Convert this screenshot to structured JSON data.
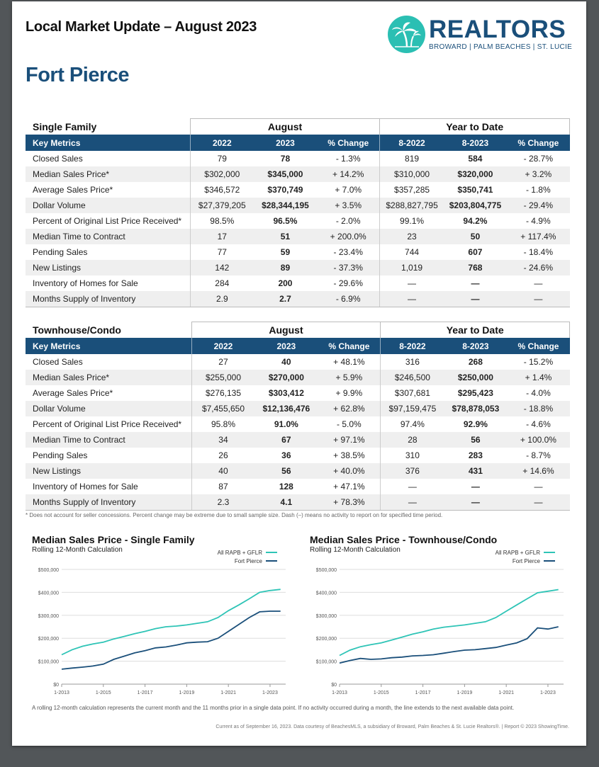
{
  "header": {
    "title": "Local Market Update – August 2023",
    "city": "Fort Pierce",
    "logo": {
      "name": "REALTORS",
      "sub": "BROWARD | PALM BEACHES | ST. LUCIE",
      "icon": "palm-tree-logo",
      "color": "#2bbfb3"
    }
  },
  "tables": [
    {
      "section": "Single Family",
      "group_august": "August",
      "group_ytd": "Year to Date",
      "columns": [
        "Key Metrics",
        "2022",
        "2023",
        "% Change",
        "8-2022",
        "8-2023",
        "% Change"
      ],
      "rows": [
        [
          "Closed Sales",
          "79",
          "78",
          "- 1.3%",
          "819",
          "584",
          "- 28.7%"
        ],
        [
          "Median Sales Price*",
          "$302,000",
          "$345,000",
          "+ 14.2%",
          "$310,000",
          "$320,000",
          "+ 3.2%"
        ],
        [
          "Average Sales Price*",
          "$346,572",
          "$370,749",
          "+ 7.0%",
          "$357,285",
          "$350,741",
          "- 1.8%"
        ],
        [
          "Dollar Volume",
          "$27,379,205",
          "$28,344,195",
          "+ 3.5%",
          "$288,827,795",
          "$203,804,775",
          "- 29.4%"
        ],
        [
          "Percent of Original List Price Received*",
          "98.5%",
          "96.5%",
          "- 2.0%",
          "99.1%",
          "94.2%",
          "- 4.9%"
        ],
        [
          "Median Time to Contract",
          "17",
          "51",
          "+ 200.0%",
          "23",
          "50",
          "+ 117.4%"
        ],
        [
          "Pending Sales",
          "77",
          "59",
          "- 23.4%",
          "744",
          "607",
          "- 18.4%"
        ],
        [
          "New Listings",
          "142",
          "89",
          "- 37.3%",
          "1,019",
          "768",
          "- 24.6%"
        ],
        [
          "Inventory of Homes for Sale",
          "284",
          "200",
          "- 29.6%",
          "—",
          "—",
          "—"
        ],
        [
          "Months Supply of Inventory",
          "2.9",
          "2.7",
          "- 6.9%",
          "—",
          "—",
          "—"
        ]
      ]
    },
    {
      "section": "Townhouse/Condo",
      "group_august": "August",
      "group_ytd": "Year to Date",
      "columns": [
        "Key Metrics",
        "2022",
        "2023",
        "% Change",
        "8-2022",
        "8-2023",
        "% Change"
      ],
      "rows": [
        [
          "Closed Sales",
          "27",
          "40",
          "+ 48.1%",
          "316",
          "268",
          "- 15.2%"
        ],
        [
          "Median Sales Price*",
          "$255,000",
          "$270,000",
          "+ 5.9%",
          "$246,500",
          "$250,000",
          "+ 1.4%"
        ],
        [
          "Average Sales Price*",
          "$276,135",
          "$303,412",
          "+ 9.9%",
          "$307,681",
          "$295,423",
          "- 4.0%"
        ],
        [
          "Dollar Volume",
          "$7,455,650",
          "$12,136,476",
          "+ 62.8%",
          "$97,159,475",
          "$78,878,053",
          "- 18.8%"
        ],
        [
          "Percent of Original List Price Received*",
          "95.8%",
          "91.0%",
          "- 5.0%",
          "97.4%",
          "92.9%",
          "- 4.6%"
        ],
        [
          "Median Time to Contract",
          "34",
          "67",
          "+ 97.1%",
          "28",
          "56",
          "+ 100.0%"
        ],
        [
          "Pending Sales",
          "26",
          "36",
          "+ 38.5%",
          "310",
          "283",
          "- 8.7%"
        ],
        [
          "New Listings",
          "40",
          "56",
          "+ 40.0%",
          "376",
          "431",
          "+ 14.6%"
        ],
        [
          "Inventory of Homes for Sale",
          "87",
          "128",
          "+ 47.1%",
          "—",
          "—",
          "—"
        ],
        [
          "Months Supply of Inventory",
          "2.3",
          "4.1",
          "+ 78.3%",
          "—",
          "—",
          "—"
        ]
      ]
    }
  ],
  "footnote": "* Does not account for seller concessions. Percent change may be extreme due to small sample size. Dash (–) means no activity to report on for specified time period.",
  "chart_data": [
    {
      "type": "line",
      "title": "Median Sales Price - Single Family",
      "subtitle": "Rolling 12-Month Calculation",
      "x": [
        2013.0,
        2013.5,
        2014.0,
        2014.5,
        2015.0,
        2015.5,
        2016.0,
        2016.5,
        2017.0,
        2017.5,
        2018.0,
        2018.5,
        2019.0,
        2019.5,
        2020.0,
        2020.5,
        2021.0,
        2021.5,
        2022.0,
        2022.5,
        2023.0,
        2023.5
      ],
      "x_ticks": [
        "1-2013",
        "1-2015",
        "1-2017",
        "1-2019",
        "1-2021",
        "1-2023"
      ],
      "y_ticks": [
        "$0",
        "$100,000",
        "$200,000",
        "$300,000",
        "$400,000",
        "$500,000"
      ],
      "ylim": [
        0,
        500000
      ],
      "legend": "top-right",
      "series": [
        {
          "name": "All RAPB + GFLR",
          "color": "#2ec4b6",
          "values": [
            128000,
            150000,
            165000,
            175000,
            183000,
            197000,
            208000,
            220000,
            230000,
            242000,
            250000,
            253000,
            258000,
            265000,
            272000,
            290000,
            320000,
            345000,
            372000,
            400000,
            408000,
            413000
          ]
        },
        {
          "name": "Fort Pierce",
          "color": "#1a4f7a",
          "values": [
            65000,
            70000,
            74000,
            79000,
            87000,
            108000,
            122000,
            136000,
            146000,
            158000,
            162000,
            170000,
            180000,
            183000,
            185000,
            200000,
            230000,
            260000,
            290000,
            315000,
            318000,
            318000
          ]
        }
      ]
    },
    {
      "type": "line",
      "title": "Median Sales Price - Townhouse/Condo",
      "subtitle": "Rolling 12-Month Calculation",
      "x": [
        2013.0,
        2013.5,
        2014.0,
        2014.5,
        2015.0,
        2015.5,
        2016.0,
        2016.5,
        2017.0,
        2017.5,
        2018.0,
        2018.5,
        2019.0,
        2019.5,
        2020.0,
        2020.5,
        2021.0,
        2021.5,
        2022.0,
        2022.5,
        2023.0,
        2023.5
      ],
      "x_ticks": [
        "1-2013",
        "1-2015",
        "1-2017",
        "1-2019",
        "1-2021",
        "1-2023"
      ],
      "y_ticks": [
        "$0",
        "$100,000",
        "$200,000",
        "$300,000",
        "$400,000",
        "$500,000"
      ],
      "ylim": [
        0,
        500000
      ],
      "legend": "top-right",
      "series": [
        {
          "name": "All RAPB + GFLR",
          "color": "#2ec4b6",
          "values": [
            125000,
            148000,
            163000,
            172000,
            180000,
            192000,
            205000,
            218000,
            228000,
            240000,
            248000,
            253000,
            258000,
            265000,
            272000,
            290000,
            318000,
            345000,
            372000,
            398000,
            405000,
            412000
          ]
        },
        {
          "name": "Fort Pierce",
          "color": "#1a4f7a",
          "values": [
            92000,
            103000,
            112000,
            108000,
            110000,
            115000,
            118000,
            123000,
            125000,
            128000,
            135000,
            142000,
            148000,
            150000,
            155000,
            160000,
            170000,
            180000,
            198000,
            245000,
            240000,
            250000
          ]
        }
      ]
    }
  ],
  "bottom_note": "A rolling 12-month calculation represents the current month and the 11 months prior in a single data point. If no activity occurred during a month, the line extends to the next available data point.",
  "credit": "Current as of September 16, 2023. Data courtesy of BeachesMLS, a subsidiary of Broward, Palm Beaches & St. Lucie Realtors®. | Report © 2023 ShowingTime."
}
